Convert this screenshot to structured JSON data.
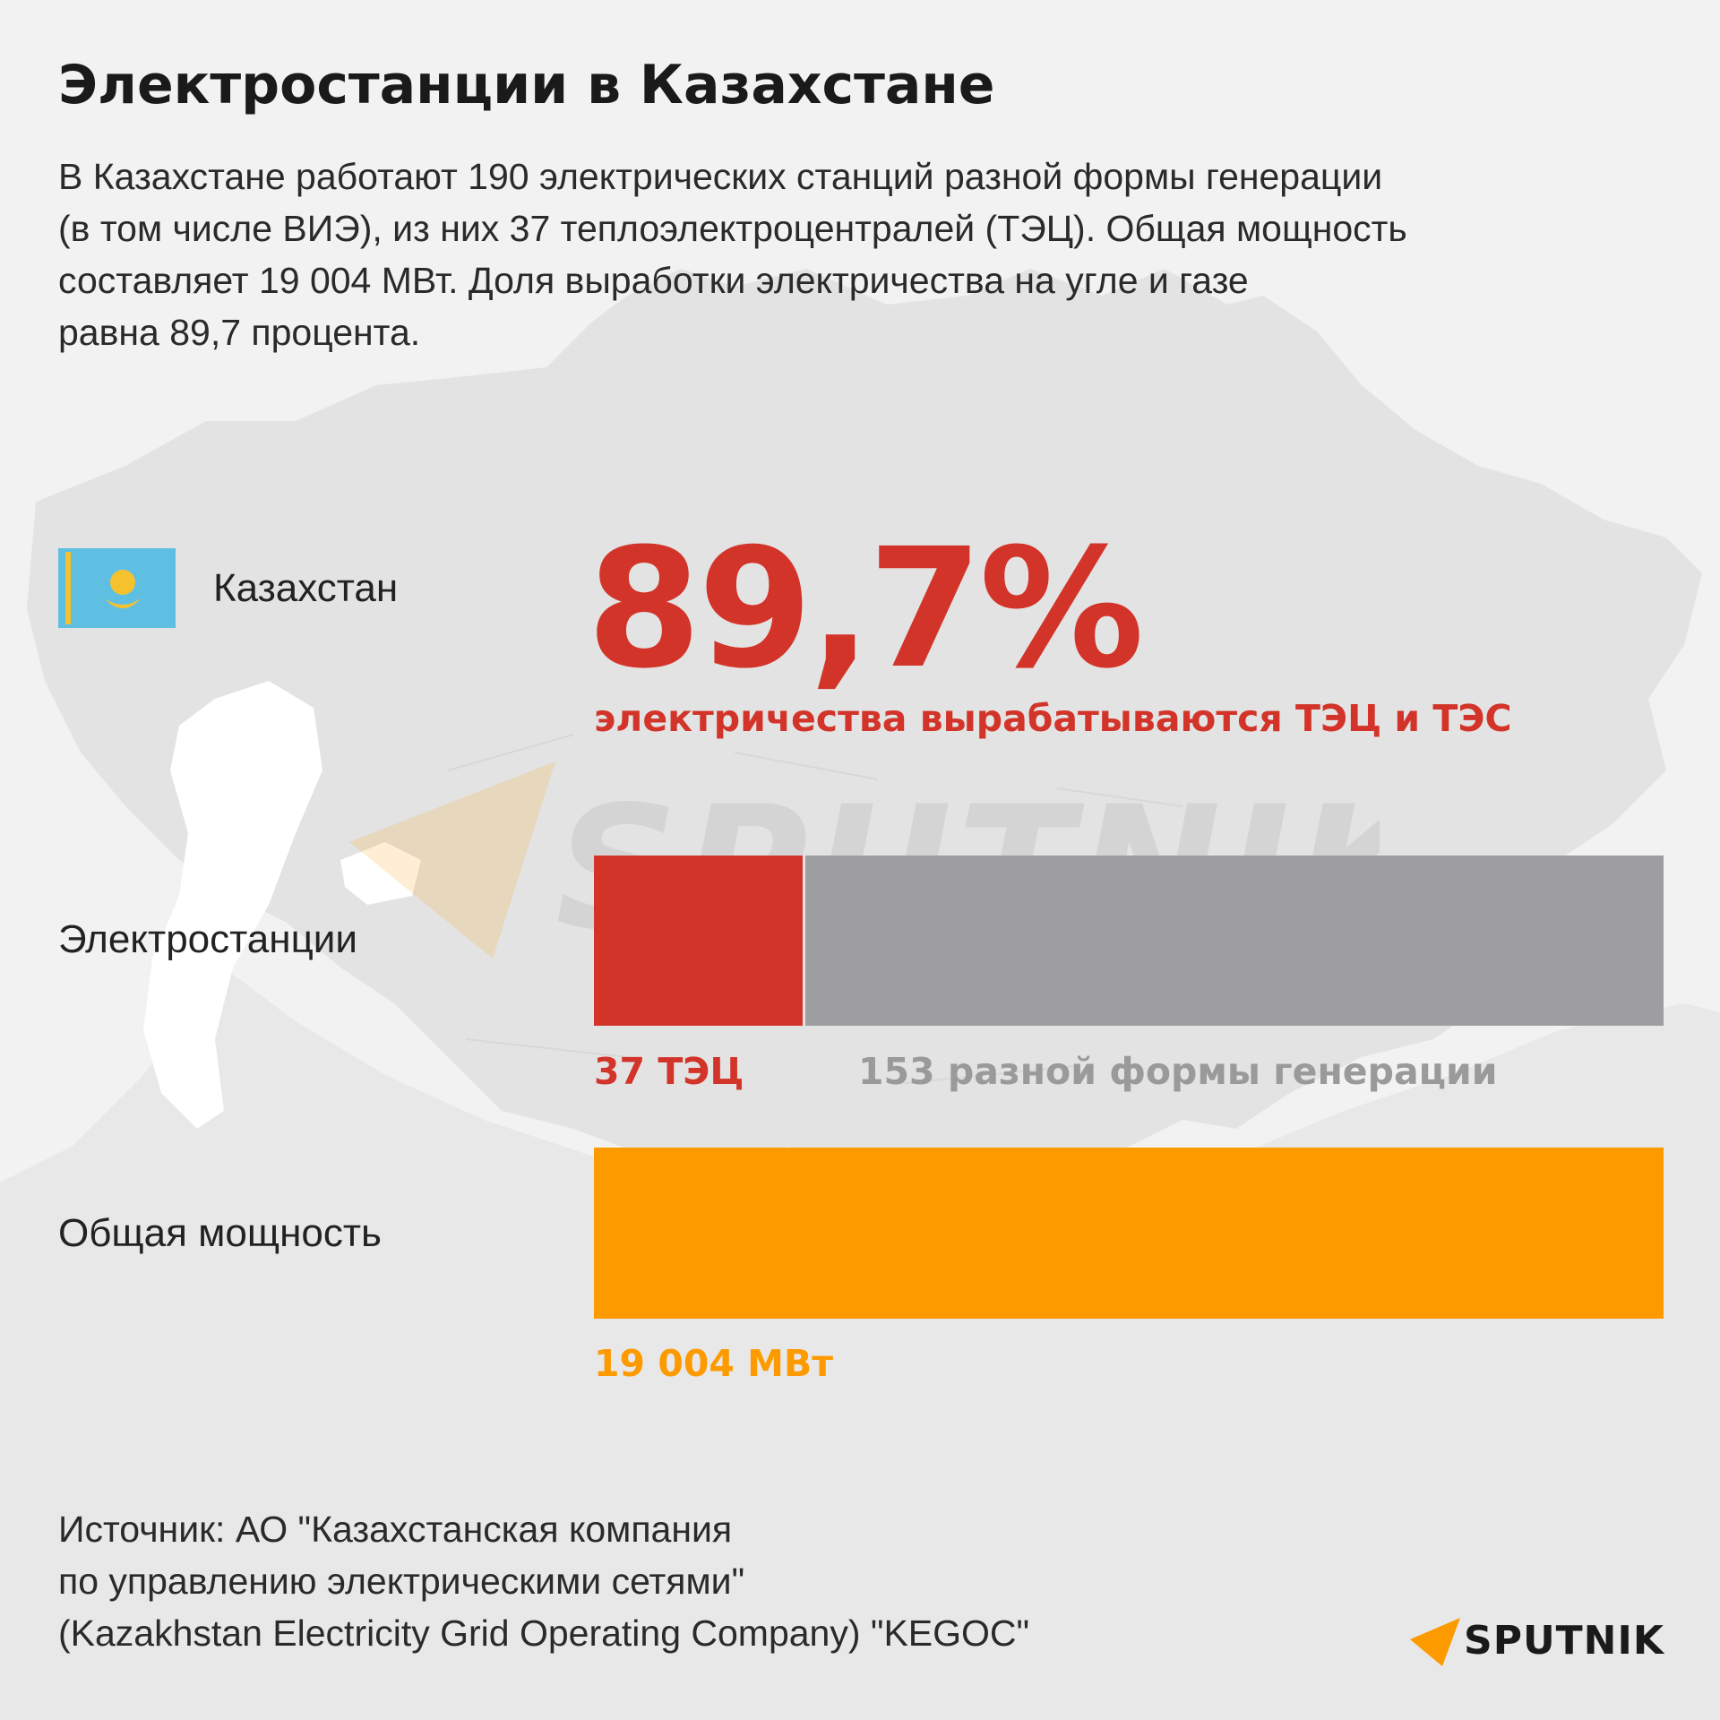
{
  "title": "Электростанции в Казахстане",
  "lead_lines": [
    "В Казахстане работают 190 электрических станций разной формы генерации",
    "(в том числе ВИЭ), из них 37 теплоэлектроцентралей (ТЭЦ). Общая мощность",
    "составляет 19 004 МВт. Доля выработки электричества на угле и газе",
    "равна 89,7 процента."
  ],
  "country": {
    "name": "Казахстан",
    "flag_icon": "kazakhstan-flag-icon"
  },
  "highlight": {
    "value": "89,7%",
    "caption": "электричества вырабатываются ТЭЦ и ТЭС"
  },
  "chart_data": [
    {
      "type": "bar",
      "orientation": "horizontal-stacked",
      "category": "Электростанции",
      "series": [
        {
          "name": "37 ТЭЦ",
          "value": 37
        },
        {
          "name": "153 разной формы генерации",
          "value": 153
        }
      ],
      "total": 190
    },
    {
      "type": "bar",
      "orientation": "horizontal",
      "category": "Общая мощность",
      "value": 19004,
      "value_label": "19 004 МВт"
    }
  ],
  "source_lines": [
    "Источник: АО \"Казахстанская компания",
    "по управлению электрическими сетями\"",
    "(Kazakhstan Electricity Grid Operating Company) \"KEGOC\""
  ],
  "logo": {
    "text": "SPUTNIK",
    "icon": "sputnik-arrow-icon"
  },
  "watermark": "SPUTNIK",
  "colors": {
    "accent_red": "#d33429",
    "gray_bar": "#9e9d9f",
    "orange": "#fc9a00",
    "label_gray": "#9a9a9a",
    "flag_blue": "#5fbfe3",
    "flag_gold": "#f5c22e",
    "background": "#f2f2f2"
  }
}
